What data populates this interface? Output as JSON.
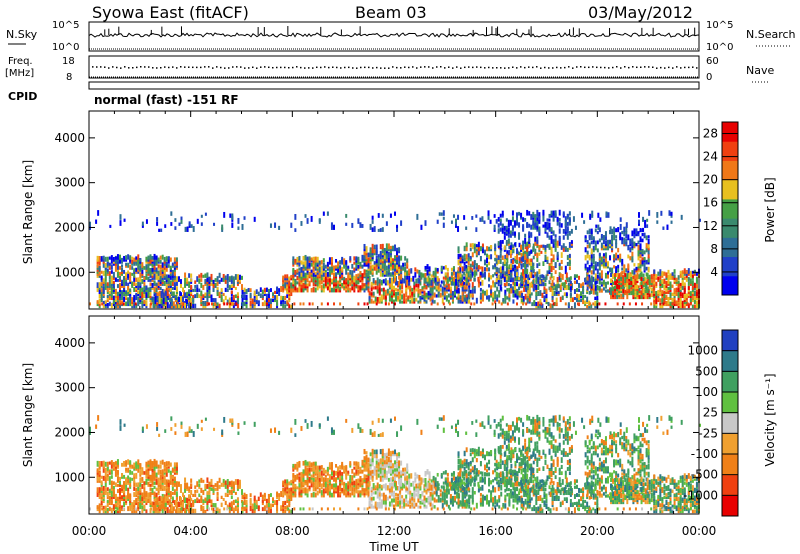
{
  "header": {
    "station": "Syowa East (fitACF)",
    "beam": "Beam 03",
    "date": "03/May/2012"
  },
  "top_panels": {
    "nsky_label": "N.Sky",
    "nsearch_label": "N.Search",
    "nsky_ticks": [
      "10^5",
      "10^0"
    ],
    "nsearch_ticks": [
      "10^5",
      "10^0"
    ],
    "freq_label_1": "Freq.",
    "freq_label_2": "[MHz]",
    "freq_ticks": [
      "18",
      "8"
    ],
    "nave_label": "Nave",
    "nave_ticks": [
      "60",
      "0"
    ],
    "cpid_label": "CPID",
    "cpid_value": "normal (fast) -151 RF"
  },
  "colors": {
    "power_scale": [
      "#0000ee",
      "#2040c8",
      "#2e6e96",
      "#3a8a6e",
      "#46a046",
      "#e8c020",
      "#f07818",
      "#f04010",
      "#e80000"
    ],
    "velocity_scale": [
      "#e80000",
      "#f04010",
      "#f08018",
      "#f0a030",
      "#c8c8c8",
      "#60c040",
      "#40a060",
      "#2e7a8a",
      "#2040c0"
    ]
  },
  "chart_data": [
    {
      "type": "heatmap",
      "title": "Power",
      "xlabel": "Time UT",
      "ylabel": "Slant Range [km]",
      "x_ticks": [
        "00:00",
        "04:00",
        "08:00",
        "12:00",
        "16:00",
        "20:00",
        "00:00"
      ],
      "x_range_hours": [
        0,
        24
      ],
      "y_ticks": [
        "1000",
        "2000",
        "3000",
        "4000"
      ],
      "y_range_km": [
        180,
        4600
      ],
      "colorbar_label": "Power [dB]",
      "colorbar_ticks": [
        "4",
        "8",
        "12",
        "16",
        "20",
        "24",
        "28"
      ],
      "colorbar_range": [
        0,
        30
      ]
    },
    {
      "type": "heatmap",
      "title": "Velocity",
      "xlabel": "Time UT",
      "ylabel": "Slant Range [km]",
      "x_ticks": [
        "00:00",
        "04:00",
        "08:00",
        "12:00",
        "16:00",
        "20:00",
        "00:00"
      ],
      "x_range_hours": [
        0,
        24
      ],
      "y_ticks": [
        "1000",
        "2000",
        "3000",
        "4000"
      ],
      "y_range_km": [
        180,
        4600
      ],
      "colorbar_label": "Velocity [m s⁻¹]",
      "colorbar_ticks": [
        "1000",
        "500",
        "100",
        "25",
        "-25",
        "-100",
        "-500",
        "-1000"
      ]
    }
  ]
}
